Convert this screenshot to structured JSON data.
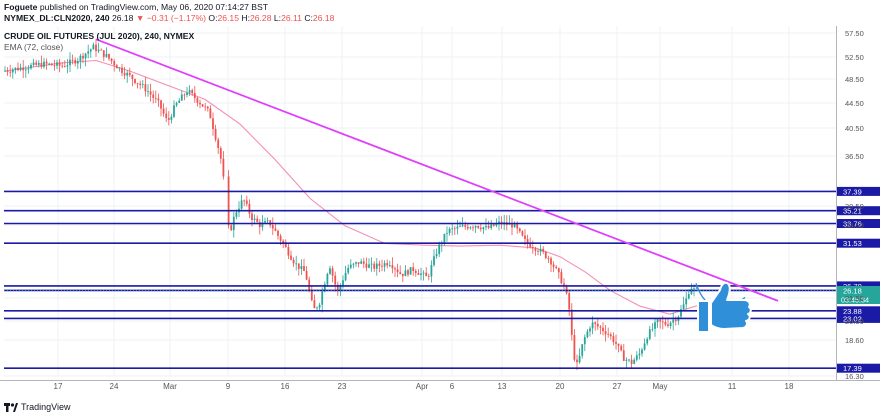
{
  "header": {
    "author": "Foguete",
    "published_text": "published on TradingView.com, May 06, 2020 07:14:27 BST",
    "symbol": "NYMEX_DL:CLN2020, 240",
    "last": "26.18",
    "change_arrow": "▼",
    "change": "−0.31 (−1.17%)",
    "ohlc": [
      {
        "label": "O:",
        "value": "26.15"
      },
      {
        "label": "H:",
        "value": "26.28"
      },
      {
        "label": "L:",
        "value": "26.11"
      },
      {
        "label": "C:",
        "value": "26.18"
      }
    ]
  },
  "chart_title": "CRUDE OIL FUTURES (JUL 2020), 240, NYMEX",
  "ema_label": "EMA (72, close)",
  "footer": {
    "brand": "TradingView"
  },
  "colors": {
    "up": "#26a69a",
    "down": "#ef5350",
    "ema": "#f48fb1",
    "trendline": "#e040fb",
    "level": "#1a1aa6",
    "annotation": "#2f8fd8"
  },
  "annotation_icon": "thumbs-up-icon",
  "chart_data": {
    "type": "candlestick",
    "title": "CRUDE OIL FUTURES (JUL 2020), 240, NYMEX",
    "ylim": [
      15.6,
      58.3
    ],
    "y_ticks": [
      "57.50",
      "52.50",
      "48.50",
      "44.50",
      "40.50",
      "36.50",
      "30.50",
      "28.50",
      "21.50",
      "20.00",
      "18.60",
      "16.30"
    ],
    "x_ticks": [
      "17",
      "24",
      "Mar",
      "9",
      "16",
      "23",
      "Apr",
      "6",
      "13",
      "20",
      "27",
      "May",
      "11",
      "18"
    ],
    "price_levels": [
      {
        "label": "37.39",
        "value": 37.39
      },
      {
        "label": "35.21",
        "value": 35.21
      },
      {
        "label": "33.76",
        "value": 33.76
      },
      {
        "label": "31.53",
        "value": 31.53
      },
      {
        "label": "26.70",
        "value": 26.7
      },
      {
        "label": "26.19",
        "value": 26.19
      },
      {
        "label": "23.88",
        "value": 23.88
      },
      {
        "label": "23.02",
        "value": 23.02
      },
      {
        "label": "17.39",
        "value": 17.39
      }
    ],
    "current_price": {
      "price": "26.18",
      "countdown": "03:45:34",
      "value": 26.18
    },
    "trendline": [
      [
        96,
        54.6
      ],
      [
        778,
        25.0
      ]
    ],
    "projection": [
      [
        696,
        27.0
      ],
      [
        745,
        25.4
      ]
    ],
    "ema_points": [
      [
        5,
        51.0
      ],
      [
        60,
        51.9
      ],
      [
        96,
        52.2
      ],
      [
        130,
        51.0
      ],
      [
        165,
        49.5
      ],
      [
        205,
        47.8
      ],
      [
        240,
        45.0
      ],
      [
        275,
        41.0
      ],
      [
        310,
        36.6
      ],
      [
        345,
        33.5
      ],
      [
        385,
        31.5
      ],
      [
        425,
        31.3
      ],
      [
        460,
        31.2
      ],
      [
        500,
        31.3
      ],
      [
        535,
        31.0
      ],
      [
        560,
        30.0
      ],
      [
        585,
        28.3
      ],
      [
        610,
        26.2
      ],
      [
        640,
        24.4
      ],
      [
        670,
        23.5
      ],
      [
        698,
        24.5
      ]
    ],
    "key_points": [
      [
        5,
        51.0
      ],
      [
        25,
        51.4
      ],
      [
        45,
        51.8
      ],
      [
        65,
        51.6
      ],
      [
        80,
        52.3
      ],
      [
        96,
        53.7
      ],
      [
        108,
        52.8
      ],
      [
        122,
        51.3
      ],
      [
        135,
        50.2
      ],
      [
        150,
        48.8
      ],
      [
        162,
        47.2
      ],
      [
        170,
        45.2
      ],
      [
        178,
        47.1
      ],
      [
        190,
        48.8
      ],
      [
        202,
        47.5
      ],
      [
        212,
        46.3
      ],
      [
        220,
        42.8
      ],
      [
        225,
        40.3
      ],
      [
        228,
        35.8
      ],
      [
        232,
        32.6
      ],
      [
        238,
        35.0
      ],
      [
        246,
        36.5
      ],
      [
        254,
        34.5
      ],
      [
        262,
        33.6
      ],
      [
        272,
        33.9
      ],
      [
        284,
        31.8
      ],
      [
        298,
        29.2
      ],
      [
        308,
        28.2
      ],
      [
        316,
        23.9
      ],
      [
        322,
        24.8
      ],
      [
        332,
        29.2
      ],
      [
        340,
        26.0
      ],
      [
        350,
        28.7
      ],
      [
        362,
        29.4
      ],
      [
        376,
        28.8
      ],
      [
        392,
        29.4
      ],
      [
        404,
        28.0
      ],
      [
        416,
        28.6
      ],
      [
        430,
        27.6
      ],
      [
        440,
        30.8
      ],
      [
        450,
        32.9
      ],
      [
        462,
        33.3
      ],
      [
        478,
        33.6
      ],
      [
        490,
        33.2
      ],
      [
        502,
        33.8
      ],
      [
        516,
        33.6
      ],
      [
        528,
        31.7
      ],
      [
        540,
        30.9
      ],
      [
        552,
        29.8
      ],
      [
        562,
        27.8
      ],
      [
        568,
        26.3
      ],
      [
        572,
        23.9
      ],
      [
        576,
        19.0
      ],
      [
        580,
        17.6
      ],
      [
        586,
        20.5
      ],
      [
        594,
        22.5
      ],
      [
        602,
        22.0
      ],
      [
        610,
        21.4
      ],
      [
        618,
        20.3
      ],
      [
        626,
        18.6
      ],
      [
        634,
        18.0
      ],
      [
        642,
        19.0
      ],
      [
        650,
        21.1
      ],
      [
        660,
        22.6
      ],
      [
        670,
        22.4
      ],
      [
        680,
        23.2
      ],
      [
        688,
        24.9
      ],
      [
        693,
        26.7
      ],
      [
        696,
        26.3
      ],
      [
        698,
        26.2
      ]
    ]
  }
}
